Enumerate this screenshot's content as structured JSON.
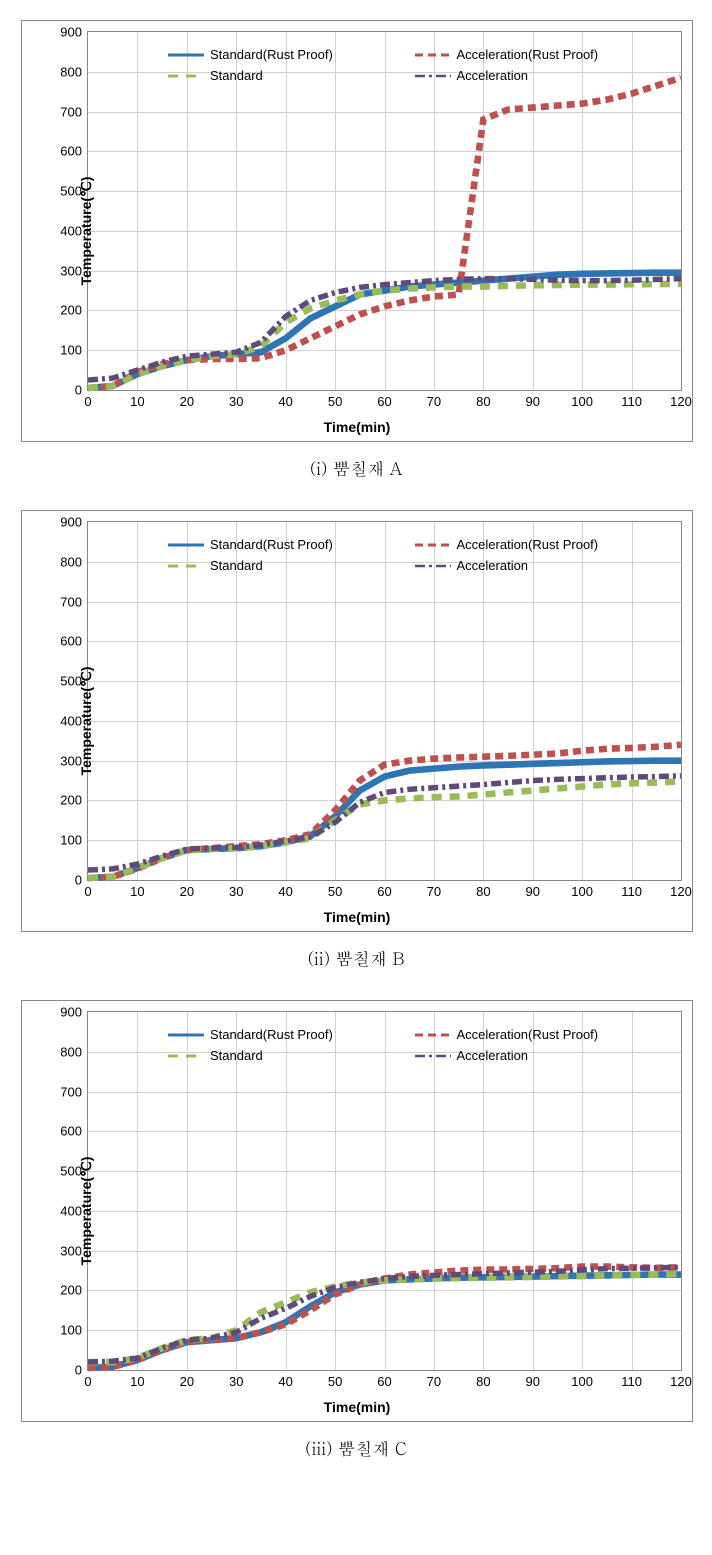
{
  "axis": {
    "ylabel": "Temperature(℃)",
    "xlabel": "Time(min)",
    "ylim": [
      0,
      900
    ],
    "xlim": [
      0,
      120
    ],
    "yticks": [
      0,
      100,
      200,
      300,
      400,
      500,
      600,
      700,
      800,
      900
    ],
    "xticks": [
      0,
      10,
      20,
      30,
      40,
      50,
      60,
      70,
      80,
      90,
      100,
      110,
      120
    ],
    "label_fontsize": 14,
    "tick_fontsize": 13,
    "grid_color": "#d0d0d0",
    "border_color": "#888888",
    "background_color": "#ffffff"
  },
  "series_styles": {
    "standard_rp": {
      "label": "Standard(Rust Proof)",
      "color": "#2e75b6",
      "dash": "",
      "width": 3
    },
    "accel_rp": {
      "label": "Acceleration(Rust Proof)",
      "color": "#c0504d",
      "dash": "8 5",
      "width": 3
    },
    "standard": {
      "label": "Standard",
      "color": "#9bbb59",
      "dash": "10 8",
      "width": 3
    },
    "accel": {
      "label": "Acceleration",
      "color": "#604a7b",
      "dash": "10 4 3 4",
      "width": 2.5
    }
  },
  "charts": [
    {
      "caption": "(i) 뿜칠재 A",
      "x": [
        0,
        5,
        10,
        15,
        20,
        25,
        30,
        35,
        40,
        45,
        50,
        55,
        60,
        65,
        70,
        75,
        80,
        85,
        90,
        95,
        100,
        105,
        110,
        115,
        120
      ],
      "series": {
        "standard_rp": [
          5,
          10,
          40,
          60,
          75,
          85,
          90,
          95,
          130,
          180,
          210,
          240,
          250,
          260,
          265,
          270,
          275,
          280,
          285,
          290,
          292,
          293,
          294,
          295,
          295
        ],
        "accel_rp": [
          5,
          10,
          45,
          65,
          75,
          78,
          78,
          80,
          100,
          130,
          160,
          190,
          210,
          225,
          235,
          240,
          680,
          705,
          710,
          715,
          720,
          730,
          745,
          765,
          785
        ],
        "standard": [
          5,
          10,
          40,
          60,
          75,
          85,
          90,
          110,
          170,
          205,
          225,
          240,
          250,
          255,
          258,
          260,
          260,
          262,
          263,
          264,
          265,
          265,
          266,
          266,
          267
        ],
        "accel": [
          25,
          30,
          50,
          70,
          85,
          90,
          95,
          120,
          185,
          225,
          245,
          258,
          265,
          270,
          275,
          278,
          280,
          280,
          278,
          276,
          275,
          275,
          276,
          278,
          280
        ]
      }
    },
    {
      "caption": "(ii) 뿜칠재 B",
      "x": [
        0,
        5,
        10,
        15,
        20,
        25,
        30,
        35,
        40,
        45,
        50,
        55,
        60,
        65,
        70,
        75,
        80,
        85,
        90,
        95,
        100,
        105,
        110,
        115,
        120
      ],
      "series": {
        "standard_rp": [
          5,
          8,
          30,
          55,
          75,
          78,
          80,
          85,
          95,
          110,
          160,
          225,
          260,
          275,
          280,
          285,
          288,
          290,
          292,
          294,
          296,
          298,
          299,
          300,
          300
        ],
        "accel_rp": [
          5,
          8,
          28,
          55,
          75,
          80,
          85,
          90,
          100,
          115,
          175,
          250,
          290,
          300,
          305,
          308,
          310,
          312,
          315,
          318,
          325,
          330,
          332,
          335,
          340
        ],
        "standard": [
          5,
          8,
          30,
          55,
          75,
          78,
          80,
          85,
          95,
          105,
          150,
          190,
          200,
          205,
          208,
          210,
          215,
          220,
          225,
          230,
          235,
          240,
          243,
          245,
          248
        ],
        "accel": [
          25,
          28,
          40,
          60,
          78,
          80,
          82,
          88,
          98,
          108,
          145,
          195,
          220,
          228,
          232,
          236,
          240,
          245,
          250,
          253,
          255,
          257,
          259,
          260,
          262
        ]
      }
    },
    {
      "caption": "(iii) 뿜칠재 C",
      "x": [
        0,
        5,
        10,
        15,
        20,
        25,
        30,
        35,
        40,
        45,
        50,
        55,
        60,
        65,
        70,
        75,
        80,
        85,
        90,
        95,
        100,
        105,
        110,
        115,
        120
      ],
      "series": {
        "standard_rp": [
          5,
          8,
          25,
          50,
          70,
          75,
          80,
          95,
          120,
          160,
          195,
          215,
          225,
          228,
          230,
          232,
          233,
          234,
          235,
          236,
          237,
          238,
          239,
          240,
          240
        ],
        "accel_rp": [
          5,
          8,
          25,
          50,
          70,
          75,
          80,
          95,
          115,
          150,
          190,
          215,
          230,
          240,
          245,
          250,
          252,
          253,
          254,
          256,
          260,
          260,
          258,
          257,
          258
        ],
        "standard": [
          20,
          20,
          30,
          55,
          75,
          80,
          100,
          145,
          170,
          195,
          210,
          220,
          225,
          228,
          230,
          231,
          232,
          233,
          234,
          235,
          236,
          238,
          239,
          240,
          242
        ],
        "accel": [
          20,
          22,
          30,
          55,
          75,
          80,
          95,
          130,
          155,
          185,
          208,
          220,
          230,
          235,
          238,
          240,
          242,
          244,
          246,
          248,
          252,
          255,
          256,
          257,
          258
        ]
      }
    }
  ]
}
